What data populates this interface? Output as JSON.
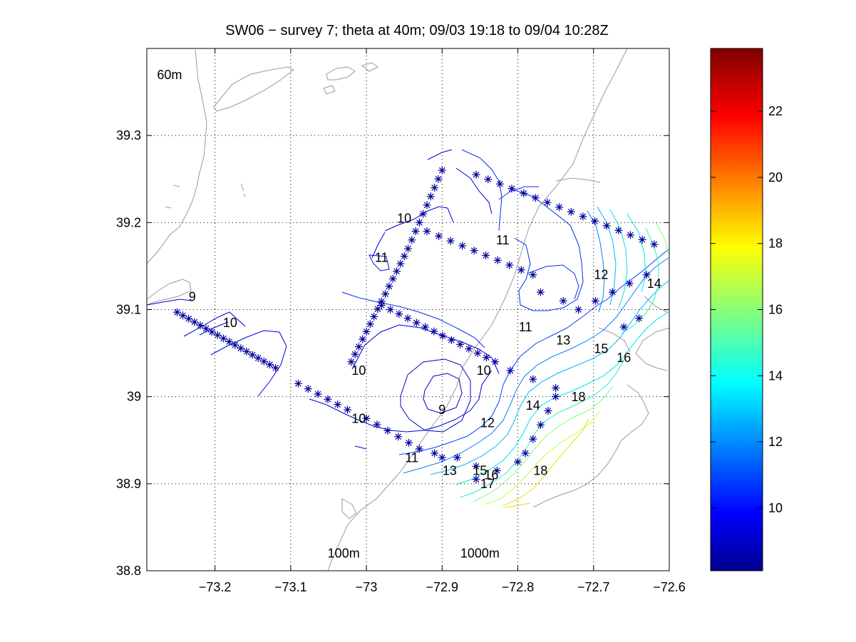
{
  "chart_data": {
    "type": "contour",
    "title": "SW06 − survey 7; theta at 40m; 09/03 19:18 to 09/04 10:28Z",
    "xlabel": "",
    "ylabel": "",
    "xlim": [
      -73.29,
      -72.6
    ],
    "ylim": [
      38.8,
      39.4
    ],
    "grid": true,
    "x_ticks": [
      -73.2,
      -73.1,
      -73.0,
      -72.9,
      -72.8,
      -72.7,
      -72.6
    ],
    "x_tick_labels": [
      "−73.2",
      "−73.1",
      "−73",
      "−72.9",
      "−72.8",
      "−72.7",
      "−72.6"
    ],
    "y_ticks": [
      38.8,
      38.9,
      39.0,
      39.1,
      39.2,
      39.3
    ],
    "y_tick_labels": [
      "38.8",
      "38.9",
      "39",
      "39.1",
      "39.2",
      "39.3"
    ],
    "colorbar": {
      "colormap": "jet",
      "range": [
        8.1,
        23.9
      ],
      "ticks": [
        10,
        12,
        14,
        16,
        18,
        20,
        22
      ],
      "tick_labels": [
        "10",
        "12",
        "14",
        "16",
        "18",
        "20",
        "22"
      ]
    },
    "bathymetry_labels": [
      {
        "text": "60m",
        "x": -73.26,
        "y": 39.365
      },
      {
        "text": "100m",
        "x": -73.03,
        "y": 38.815
      },
      {
        "text": "1000m",
        "x": -72.85,
        "y": 38.815
      }
    ],
    "contour_labels": [
      {
        "text": "9",
        "x": -73.23,
        "y": 39.11
      },
      {
        "text": "10",
        "x": -73.18,
        "y": 39.08
      },
      {
        "text": "11",
        "x": -72.98,
        "y": 39.155
      },
      {
        "text": "10",
        "x": -72.95,
        "y": 39.2
      },
      {
        "text": "11",
        "x": -72.82,
        "y": 39.175
      },
      {
        "text": "12",
        "x": -72.69,
        "y": 39.135
      },
      {
        "text": "14",
        "x": -72.62,
        "y": 39.125
      },
      {
        "text": "11",
        "x": -72.79,
        "y": 39.075
      },
      {
        "text": "13",
        "x": -72.74,
        "y": 39.06
      },
      {
        "text": "15",
        "x": -72.69,
        "y": 39.05
      },
      {
        "text": "16",
        "x": -72.66,
        "y": 39.04
      },
      {
        "text": "10",
        "x": -73.01,
        "y": 39.025
      },
      {
        "text": "10",
        "x": -72.845,
        "y": 39.025
      },
      {
        "text": "9",
        "x": -72.9,
        "y": 38.98
      },
      {
        "text": "10",
        "x": -73.01,
        "y": 38.97
      },
      {
        "text": "12",
        "x": -72.84,
        "y": 38.965
      },
      {
        "text": "14",
        "x": -72.78,
        "y": 38.985
      },
      {
        "text": "18",
        "x": -72.72,
        "y": 38.995
      },
      {
        "text": "11",
        "x": -72.94,
        "y": 38.925
      },
      {
        "text": "13",
        "x": -72.89,
        "y": 38.91
      },
      {
        "text": "15",
        "x": -72.85,
        "y": 38.91
      },
      {
        "text": "16",
        "x": -72.835,
        "y": 38.905
      },
      {
        "text": "17",
        "x": -72.84,
        "y": 38.895
      },
      {
        "text": "18",
        "x": -72.77,
        "y": 38.91
      }
    ],
    "stations": {
      "marker": "*",
      "color": "#00009c",
      "tracks": [
        {
          "from": [
            -73.25,
            39.097
          ],
          "to": [
            -73.12,
            39.033
          ],
          "n": 18
        },
        {
          "from": [
            -73.09,
            39.015
          ],
          "to": [
            -73.025,
            38.985
          ],
          "n": 6
        },
        {
          "from": [
            -73.0,
            38.975
          ],
          "to": [
            -72.93,
            38.94
          ],
          "n": 6
        },
        {
          "from": [
            -72.91,
            38.935
          ],
          "to": [
            -72.9,
            38.93
          ],
          "n": 2
        },
        {
          "from": [
            -73.02,
            39.04
          ],
          "to": [
            -72.945,
            39.17
          ],
          "n": 16
        },
        {
          "from": [
            -72.94,
            39.18
          ],
          "to": [
            -72.9,
            39.26
          ],
          "n": 9
        },
        {
          "from": [
            -72.98,
            39.105
          ],
          "to": [
            -72.83,
            39.04
          ],
          "n": 14
        },
        {
          "from": [
            -72.92,
            39.19
          ],
          "to": [
            -72.78,
            39.14
          ],
          "n": 10
        },
        {
          "from": [
            -72.77,
            39.12
          ],
          "to": [
            -72.74,
            39.11
          ],
          "n": 2
        },
        {
          "from": [
            -72.855,
            39.255
          ],
          "to": [
            -72.62,
            39.175
          ],
          "n": 16
        },
        {
          "from": [
            -72.72,
            39.1
          ],
          "to": [
            -72.63,
            39.14
          ],
          "n": 5
        },
        {
          "from": [
            -72.66,
            39.08
          ],
          "to": [
            -72.64,
            39.09
          ],
          "n": 2
        },
        {
          "from": [
            -72.81,
            39.03
          ],
          "to": [
            -72.75,
            39.01
          ],
          "n": 3
        },
        {
          "from": [
            -72.75,
            39.0
          ],
          "to": [
            -72.79,
            38.935
          ],
          "n": 5
        },
        {
          "from": [
            -72.8,
            38.925
          ],
          "to": [
            -72.855,
            38.905
          ],
          "n": 3
        },
        {
          "from": [
            -72.88,
            38.93
          ],
          "to": [
            -72.855,
            38.92
          ],
          "n": 2
        }
      ]
    }
  }
}
